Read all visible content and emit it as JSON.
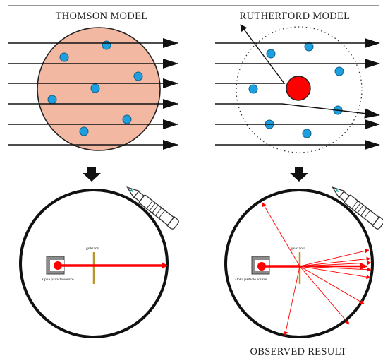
{
  "thomson": {
    "title": "THOMSON MODEL",
    "observation": {
      "foil_label": "gold foil",
      "source_label": "alpha particle source"
    }
  },
  "rutherford": {
    "title": "RUTHERFORD MODEL",
    "observation": {
      "foil_label": "gold foil",
      "source_label": "alpha particle source"
    }
  },
  "result_caption": "OBSERVED RESULT",
  "colors": {
    "pudding": "#f2b8a2",
    "electron": "#1e9fe0",
    "nucleus": "#ff0000",
    "beam": "#ff0000",
    "foil": "#b8962e",
    "arrow": "#111111"
  },
  "icons": [
    "arrow-down-icon",
    "microscope-icon",
    "alpha-source-icon"
  ]
}
